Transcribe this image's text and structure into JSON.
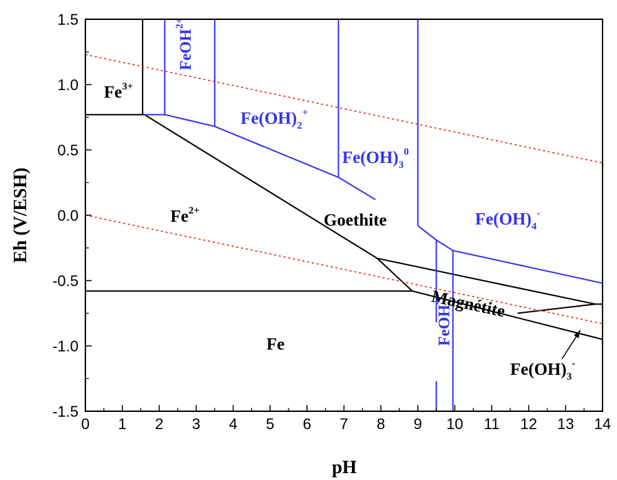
{
  "chart_data": {
    "type": "line",
    "title": "",
    "xlabel": "pH",
    "ylabel": "Eh  (V/ESH)",
    "xlim": [
      0,
      14
    ],
    "ylim": [
      -1.5,
      1.5
    ],
    "xticks": [
      "0",
      "1",
      "2",
      "3",
      "4",
      "5",
      "6",
      "7",
      "8",
      "9",
      "10",
      "11",
      "12",
      "13",
      "14"
    ],
    "yticks": [
      "-1.5",
      "-1.0",
      "-0.5",
      "0.0",
      "0.5",
      "1.0",
      "1.5"
    ],
    "grid": false,
    "colors": {
      "fe_species": "#000000",
      "hydroxide_species": "#3333ee",
      "water_limits": "#ee2222"
    },
    "series": [
      {
        "color": "fe_species",
        "style": "solid",
        "x": [
          0,
          1.6
        ],
        "y": [
          0.77,
          0.77
        ]
      },
      {
        "color": "fe_species",
        "style": "solid",
        "x": [
          1.55,
          1.55
        ],
        "y": [
          0.77,
          1.5
        ]
      },
      {
        "color": "fe_species",
        "style": "solid",
        "x": [
          1.6,
          7.9,
          8.85
        ],
        "y": [
          0.77,
          -0.33,
          -0.58
        ]
      },
      {
        "color": "fe_species",
        "style": "solid",
        "x": [
          0,
          8.85
        ],
        "y": [
          -0.58,
          -0.58
        ]
      },
      {
        "color": "fe_species",
        "style": "solid",
        "x": [
          7.9,
          13.8
        ],
        "y": [
          -0.33,
          -0.68
        ]
      },
      {
        "color": "fe_species",
        "style": "solid",
        "x": [
          8.85,
          14
        ],
        "y": [
          -0.58,
          -0.95
        ]
      },
      {
        "color": "fe_species",
        "style": "solid",
        "x": [
          11.7,
          13.8,
          14
        ],
        "y": [
          -0.75,
          -0.68,
          -0.68
        ]
      },
      {
        "color": "hydroxide_species",
        "style": "solid",
        "x": [
          1.6,
          2.15,
          3.5,
          6.85,
          7.85
        ],
        "y": [
          0.77,
          0.77,
          0.68,
          0.29,
          0.12
        ]
      },
      {
        "color": "hydroxide_species",
        "style": "solid",
        "x": [
          2.15,
          2.15
        ],
        "y": [
          0.77,
          1.5
        ]
      },
      {
        "color": "hydroxide_species",
        "style": "solid",
        "x": [
          3.5,
          3.5
        ],
        "y": [
          0.68,
          1.5
        ]
      },
      {
        "color": "hydroxide_species",
        "style": "solid",
        "x": [
          6.85,
          6.85
        ],
        "y": [
          0.29,
          1.5
        ]
      },
      {
        "color": "hydroxide_species",
        "style": "solid",
        "x": [
          9.0,
          9.0
        ],
        "y": [
          -0.08,
          1.5
        ]
      },
      {
        "color": "hydroxide_species",
        "style": "solid",
        "x": [
          9.0,
          9.5,
          9.95,
          14
        ],
        "y": [
          -0.08,
          -0.19,
          -0.27,
          -0.52
        ]
      },
      {
        "color": "hydroxide_species",
        "style": "solid",
        "x": [
          9.5,
          9.5
        ],
        "y": [
          -0.19,
          -0.82
        ]
      },
      {
        "color": "hydroxide_species",
        "style": "solid",
        "x": [
          9.5,
          9.5
        ],
        "y": [
          -1.27,
          -1.5
        ]
      },
      {
        "color": "hydroxide_species",
        "style": "solid",
        "x": [
          9.95,
          9.95
        ],
        "y": [
          -0.27,
          -1.5
        ]
      },
      {
        "color": "water_limits",
        "style": "dashed",
        "x": [
          0,
          14
        ],
        "y": [
          1.23,
          0.4
        ]
      },
      {
        "color": "water_limits",
        "style": "dashed",
        "x": [
          0,
          14
        ],
        "y": [
          0.0,
          -0.83
        ]
      }
    ],
    "annotations": [
      {
        "name": "fe3",
        "base": "Fe",
        "sup": "3+",
        "sub": "",
        "color": "fe_species",
        "rotate": 0,
        "x": 0.5,
        "y": 0.9
      },
      {
        "name": "feoh2",
        "base": "FeOH",
        "sup": "2+",
        "sub": "",
        "color": "hydroxide_species",
        "rotate": -90,
        "x": 2.85,
        "y": 1.11
      },
      {
        "name": "feoh2-plus",
        "base": "Fe(OH)",
        "sup": "+",
        "sub": "2",
        "color": "hydroxide_species",
        "rotate": 0,
        "x": 4.2,
        "y": 0.7
      },
      {
        "name": "feoh3-0",
        "base": "Fe(OH)",
        "sup": "0",
        "sub": "3",
        "color": "hydroxide_species",
        "rotate": 0,
        "x": 6.95,
        "y": 0.4
      },
      {
        "name": "fe2",
        "base": "Fe",
        "sup": "2+",
        "sub": "",
        "color": "fe_species",
        "rotate": 0,
        "x": 2.3,
        "y": -0.05
      },
      {
        "name": "goethite",
        "base": "Goethite",
        "sup": "",
        "sub": "",
        "color": "fe_species",
        "rotate": 0,
        "x": 6.45,
        "y": -0.08
      },
      {
        "name": "feoh4-minus",
        "base": "Fe(OH)",
        "sup": "-",
        "sub": "4",
        "color": "hydroxide_species",
        "rotate": 0,
        "x": 10.55,
        "y": -0.07
      },
      {
        "name": "magnetite",
        "base": "Magnétite",
        "sup": "",
        "sub": "",
        "color": "fe_species",
        "rotate": 12,
        "x": 9.35,
        "y": -0.66
      },
      {
        "name": "fe",
        "base": "Fe",
        "sup": "",
        "sub": "",
        "color": "fe_species",
        "rotate": 0,
        "x": 4.9,
        "y": -1.03
      },
      {
        "name": "feoh-plus",
        "base": "FeOH",
        "sup": "+",
        "sub": "",
        "color": "hydroxide_species",
        "rotate": -90,
        "x": 9.85,
        "y": -1.0
      },
      {
        "name": "feoh3-minus",
        "base": "Fe(OH)",
        "sup": "-",
        "sub": "3",
        "color": "fe_species",
        "rotate": 0,
        "x": 11.5,
        "y": -1.22
      }
    ]
  }
}
